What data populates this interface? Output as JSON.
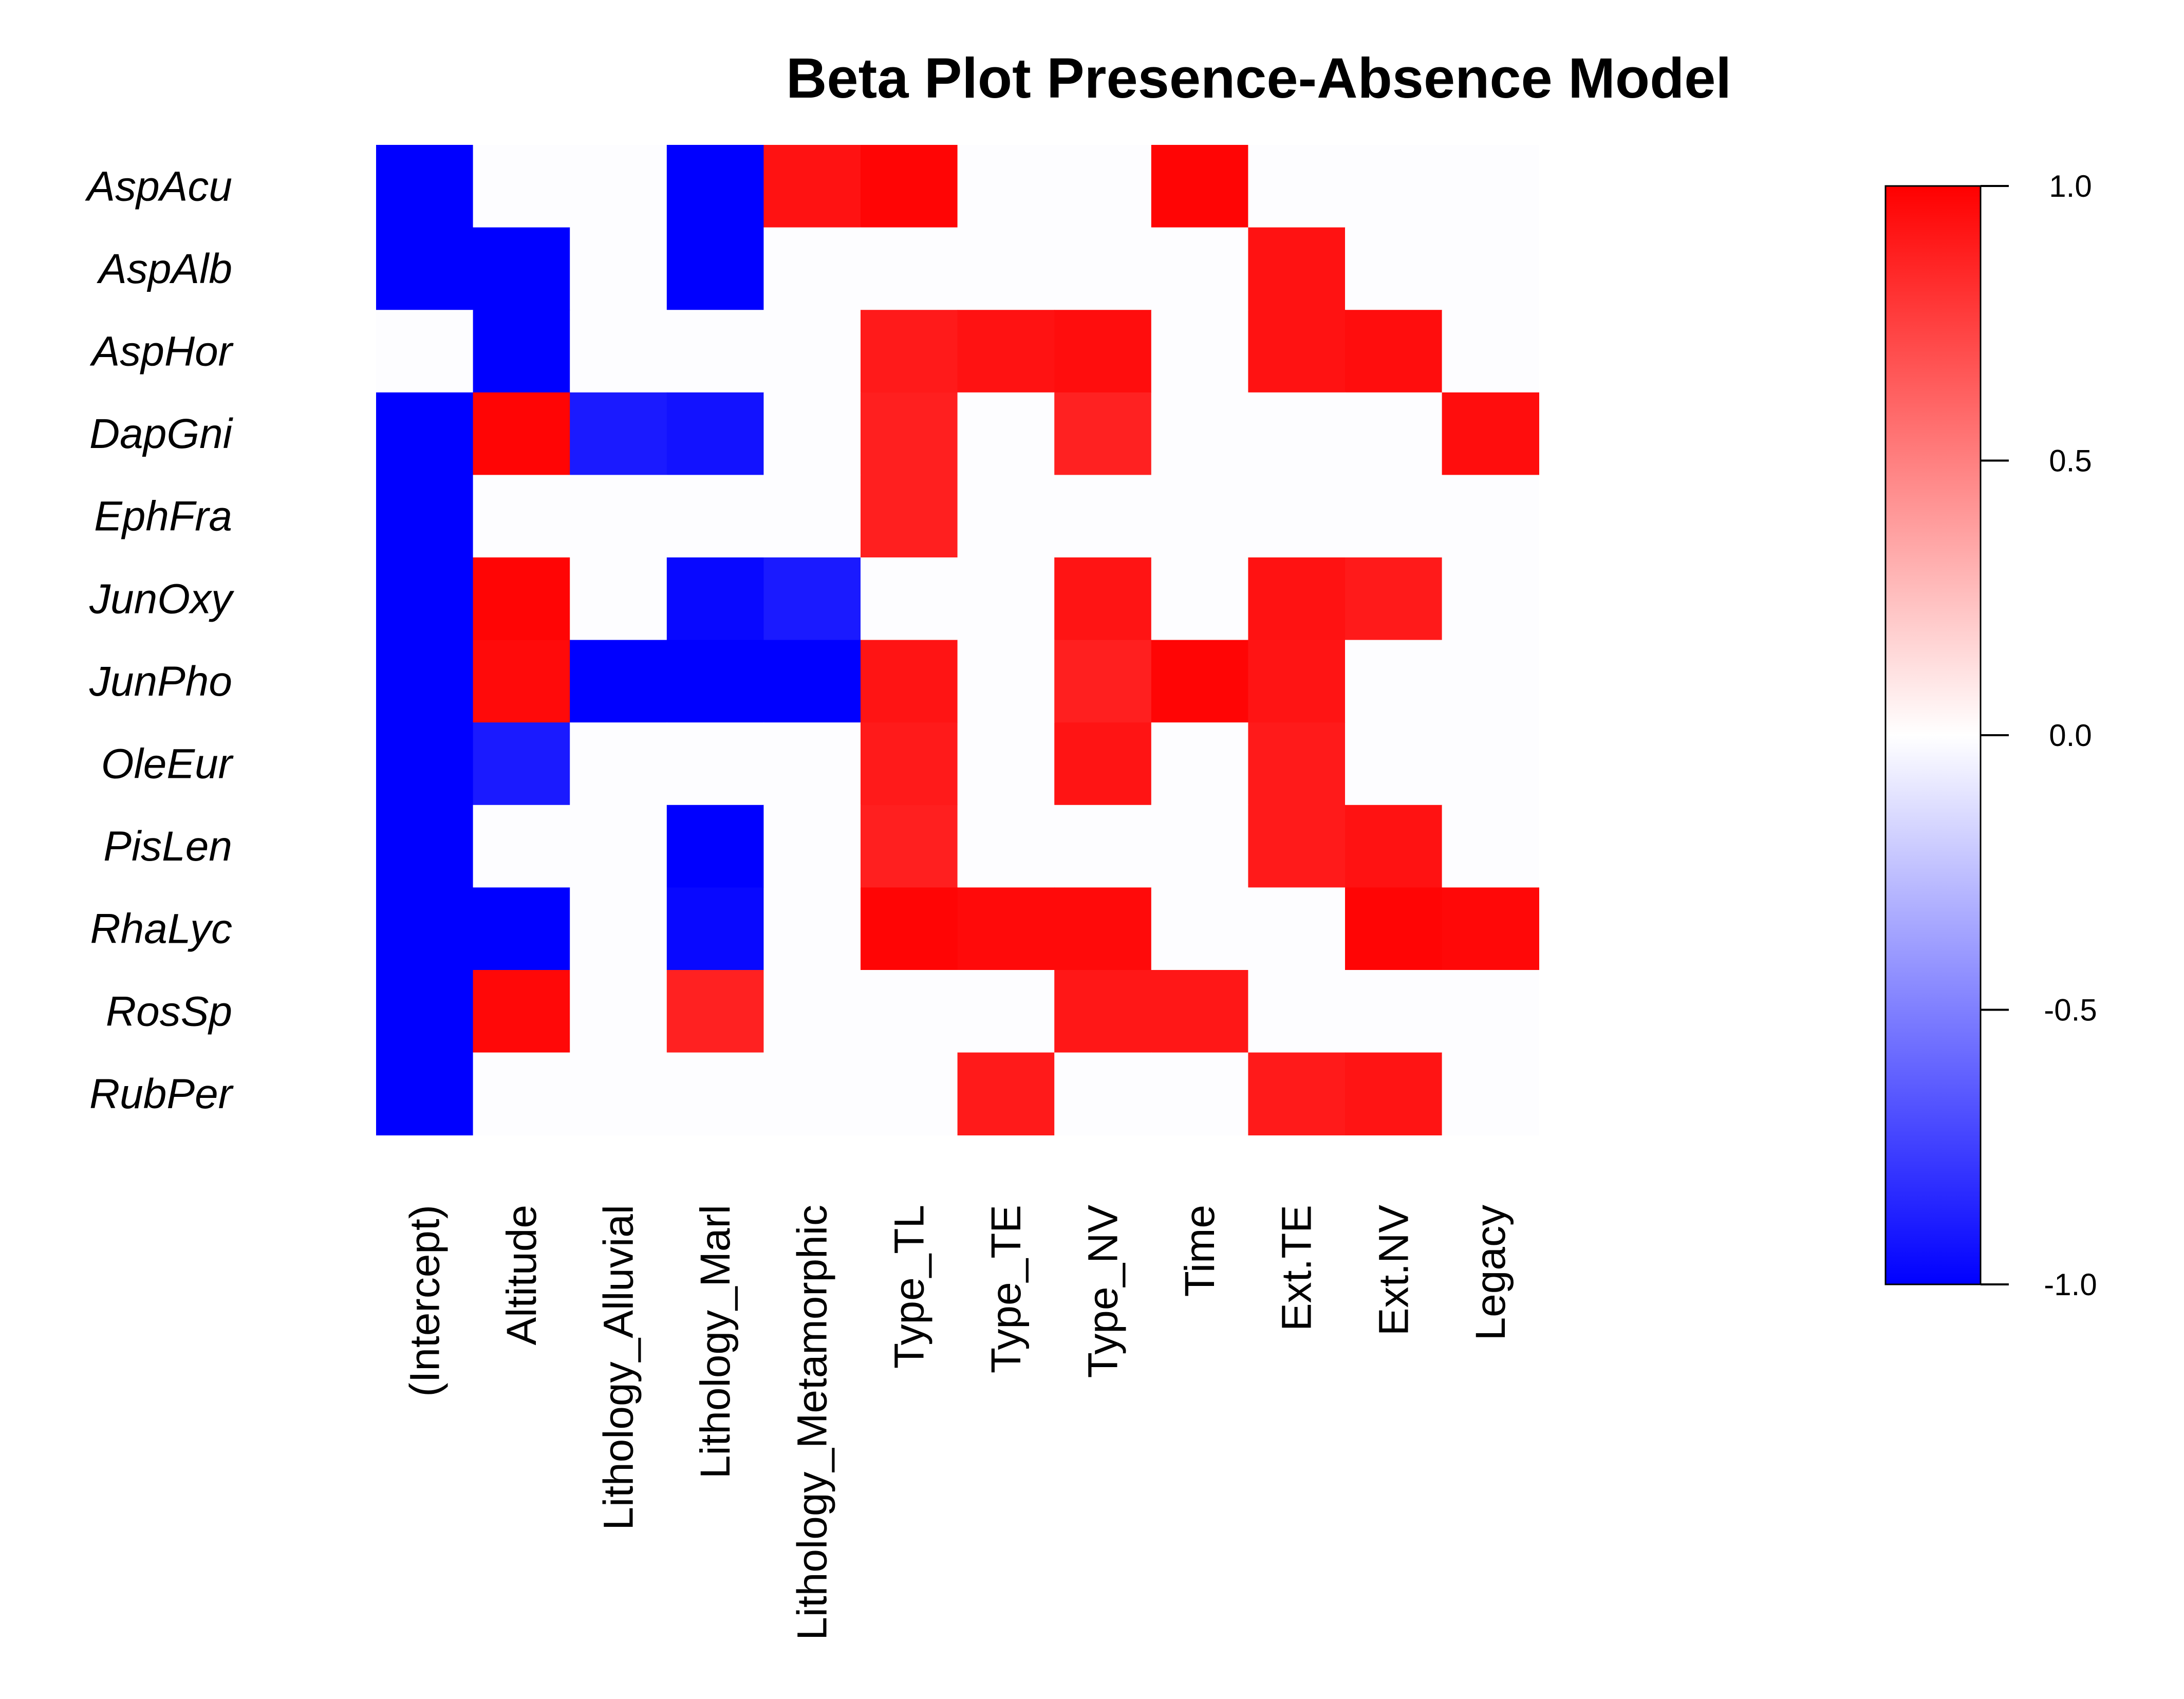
{
  "chart_data": {
    "type": "heatmap",
    "title": "Beta Plot Presence-Absence Model",
    "rows": [
      "AspAcu",
      "AspAlb",
      "AspHor",
      "DapGni",
      "EphFra",
      "JunOxy",
      "JunPho",
      "OleEur",
      "PisLen",
      "RhaLyc",
      "RosSp",
      "RubPer"
    ],
    "columns": [
      "(Intercept)",
      "Altitude",
      "Lithology_Alluvial",
      "Lithology_Marl",
      "Lithology_Metamorphic",
      "Type_TL",
      "Type_TE",
      "Type_NV",
      "Time",
      "Ext.TE",
      "Ext.NV",
      "Legacy"
    ],
    "values": [
      [
        -1.0,
        0,
        0,
        -1.0,
        0.93,
        0.98,
        0,
        0,
        0.98,
        0,
        0,
        0
      ],
      [
        -1.0,
        -1.0,
        0,
        -1.0,
        0,
        0,
        0,
        0,
        0,
        0.93,
        0,
        0
      ],
      [
        0,
        -1.0,
        0,
        0,
        0,
        0.9,
        0.93,
        0.95,
        0,
        0.93,
        0.95,
        0
      ],
      [
        -1.0,
        0.98,
        -0.9,
        -0.93,
        0,
        0.88,
        0,
        0.87,
        0,
        0,
        0,
        0.95
      ],
      [
        -1.0,
        0,
        0,
        0,
        0,
        0.88,
        0,
        0,
        0,
        0,
        0,
        0
      ],
      [
        -1.0,
        0.98,
        0,
        -0.97,
        -0.9,
        0,
        0,
        0.92,
        0,
        0.93,
        0.9,
        0
      ],
      [
        -1.0,
        0.96,
        -1.0,
        -1.0,
        -1.0,
        0.92,
        0,
        0.88,
        0.98,
        0.92,
        0,
        0
      ],
      [
        -1.0,
        -0.9,
        0,
        0,
        0,
        0.9,
        0,
        0.92,
        0,
        0.9,
        0,
        0
      ],
      [
        -1.0,
        0,
        0,
        -1.0,
        0,
        0.88,
        0,
        0,
        0,
        0.9,
        0.93,
        0
      ],
      [
        -1.0,
        -1.0,
        0,
        -0.97,
        0,
        0.98,
        0.96,
        0.96,
        0,
        0,
        0.98,
        0.97
      ],
      [
        -1.0,
        0.97,
        0,
        0.87,
        0,
        0,
        0,
        0.91,
        0.91,
        0,
        0,
        0
      ],
      [
        -1.0,
        0,
        0,
        0,
        0,
        0,
        0.9,
        0,
        0,
        0.9,
        0.92,
        0
      ]
    ],
    "color_scale": {
      "min": -1.0,
      "max": 1.0,
      "low_color": "#0000ff",
      "mid_color": "#ffffff",
      "high_color": "#ff0000",
      "ticks": [
        "1.0",
        "0.5",
        "0.0",
        "-0.5",
        "-1.0"
      ],
      "tick_values": [
        1.0,
        0.5,
        0.0,
        -0.5,
        -1.0
      ]
    },
    "legend": "right"
  }
}
